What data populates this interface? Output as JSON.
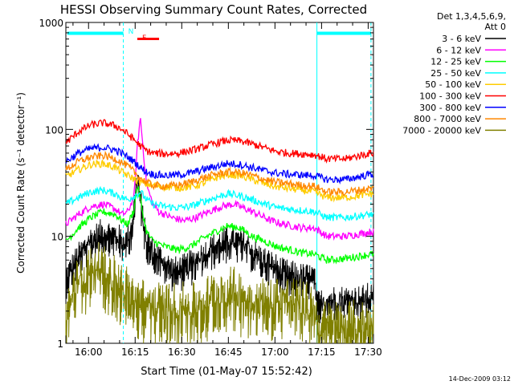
{
  "chart_data": {
    "type": "line",
    "title": "HESSI Observing Summary Count Rates, Corrected",
    "xlabel": "Start Time (01-May-07 15:52:42)",
    "ylabel": "Corrected Count Rate (s⁻¹ detector⁻¹)",
    "y_scale": "log",
    "ylim": [
      1,
      1000
    ],
    "x_unit": "minutes since 15:52:42",
    "xlim": [
      0,
      99
    ],
    "x_ticks": [
      {
        "label": "16:00",
        "value": 7.3
      },
      {
        "label": "16:15",
        "value": 22.3
      },
      {
        "label": "16:30",
        "value": 37.3
      },
      {
        "label": "16:45",
        "value": 52.3
      },
      {
        "label": "17:00",
        "value": 67.3
      },
      {
        "label": "17:15",
        "value": 82.3
      },
      {
        "label": "17:30",
        "value": 97.3
      }
    ],
    "y_ticks": [
      {
        "label": "1",
        "value": 1
      },
      {
        "label": "10",
        "value": 10
      },
      {
        "label": "100",
        "value": 100
      },
      {
        "label": "1000",
        "value": 1000
      }
    ],
    "legend": {
      "header": [
        "Det 1,3,4,5,6,9,",
        "Att 0"
      ],
      "placement": "right"
    },
    "flags": [
      {
        "label": "N",
        "color": "#00ffff",
        "x_start": 18.5,
        "x_end": 19.5
      },
      {
        "label": "F",
        "color": "#ff0000",
        "x_start": 23.0,
        "x_end": 30.0
      }
    ],
    "night_bars": [
      {
        "x_start": 0.5,
        "x_end": 18.5
      },
      {
        "x_start": 80.8,
        "x_end": 98.2
      }
    ],
    "night_lines": [
      18.5,
      80.8,
      98.2
    ],
    "series": [
      {
        "name": "3 - 6 keV",
        "color": "#000000",
        "points": [
          [
            0,
            4.5
          ],
          [
            4,
            7
          ],
          [
            8,
            10
          ],
          [
            12,
            12
          ],
          [
            16,
            11
          ],
          [
            18,
            10
          ],
          [
            19,
            9
          ],
          [
            21,
            13
          ],
          [
            22,
            20
          ],
          [
            23,
            40
          ],
          [
            24,
            25
          ],
          [
            25,
            14
          ],
          [
            26,
            10
          ],
          [
            28,
            8
          ],
          [
            30,
            7
          ],
          [
            32,
            6
          ],
          [
            35,
            5.2
          ],
          [
            38,
            5.5
          ],
          [
            42,
            6.5
          ],
          [
            46,
            8
          ],
          [
            50,
            9.5
          ],
          [
            54,
            10
          ],
          [
            58,
            9
          ],
          [
            62,
            7
          ],
          [
            66,
            6
          ],
          [
            70,
            5
          ],
          [
            76,
            4.5
          ],
          [
            80,
            4.5
          ],
          [
            80.8,
            2.5
          ],
          [
            85,
            2.8
          ],
          [
            90,
            2.8
          ],
          [
            95,
            2.8
          ],
          [
            98,
            3
          ]
        ]
      },
      {
        "name": "6 - 12 keV",
        "color": "#ff00ff",
        "points": [
          [
            0,
            13
          ],
          [
            4,
            16
          ],
          [
            8,
            19
          ],
          [
            12,
            20
          ],
          [
            16,
            18
          ],
          [
            18,
            16
          ],
          [
            20,
            17
          ],
          [
            22,
            24
          ],
          [
            23,
            70
          ],
          [
            24,
            130
          ],
          [
            25,
            60
          ],
          [
            26,
            30
          ],
          [
            28,
            20
          ],
          [
            30,
            17
          ],
          [
            34,
            15
          ],
          [
            38,
            14
          ],
          [
            42,
            15
          ],
          [
            46,
            17
          ],
          [
            50,
            19
          ],
          [
            54,
            20
          ],
          [
            58,
            18
          ],
          [
            62,
            16
          ],
          [
            66,
            14
          ],
          [
            70,
            13
          ],
          [
            76,
            12
          ],
          [
            80,
            12
          ],
          [
            84,
            10
          ],
          [
            90,
            10
          ],
          [
            98,
            11
          ]
        ]
      },
      {
        "name": "12 - 25 keV",
        "color": "#00ff00",
        "points": [
          [
            0,
            9
          ],
          [
            4,
            12
          ],
          [
            8,
            15
          ],
          [
            12,
            17
          ],
          [
            16,
            16
          ],
          [
            18,
            14
          ],
          [
            20,
            13
          ],
          [
            22,
            18
          ],
          [
            23,
            30
          ],
          [
            24,
            22
          ],
          [
            25,
            15
          ],
          [
            26,
            11
          ],
          [
            28,
            9
          ],
          [
            32,
            8
          ],
          [
            36,
            7.5
          ],
          [
            40,
            8
          ],
          [
            44,
            9.5
          ],
          [
            48,
            11
          ],
          [
            52,
            12.5
          ],
          [
            56,
            12
          ],
          [
            60,
            10
          ],
          [
            64,
            9
          ],
          [
            68,
            8
          ],
          [
            72,
            7.5
          ],
          [
            76,
            7
          ],
          [
            80,
            6.8
          ],
          [
            84,
            6
          ],
          [
            90,
            6.2
          ],
          [
            98,
            6.8
          ]
        ]
      },
      {
        "name": "25 - 50 keV",
        "color": "#00ffff",
        "points": [
          [
            0,
            20
          ],
          [
            4,
            23
          ],
          [
            8,
            26
          ],
          [
            12,
            27
          ],
          [
            16,
            25
          ],
          [
            18,
            23
          ],
          [
            20,
            22
          ],
          [
            22,
            24
          ],
          [
            24,
            26
          ],
          [
            26,
            22
          ],
          [
            28,
            20
          ],
          [
            32,
            19
          ],
          [
            36,
            18.5
          ],
          [
            40,
            19
          ],
          [
            44,
            21
          ],
          [
            48,
            23
          ],
          [
            52,
            25
          ],
          [
            56,
            24
          ],
          [
            60,
            22
          ],
          [
            64,
            20
          ],
          [
            68,
            18.5
          ],
          [
            72,
            18
          ],
          [
            76,
            17.5
          ],
          [
            80,
            17
          ],
          [
            84,
            15
          ],
          [
            90,
            15
          ],
          [
            98,
            16
          ]
        ]
      },
      {
        "name": "50 - 100 keV",
        "color": "#ffcc00",
        "points": [
          [
            0,
            36
          ],
          [
            4,
            42
          ],
          [
            8,
            47
          ],
          [
            12,
            48
          ],
          [
            16,
            44
          ],
          [
            18,
            40
          ],
          [
            20,
            37
          ],
          [
            24,
            32
          ],
          [
            28,
            30
          ],
          [
            32,
            29
          ],
          [
            36,
            28.5
          ],
          [
            40,
            29
          ],
          [
            44,
            31
          ],
          [
            48,
            35
          ],
          [
            52,
            38
          ],
          [
            56,
            37
          ],
          [
            60,
            34
          ],
          [
            64,
            31
          ],
          [
            68,
            29
          ],
          [
            72,
            28
          ],
          [
            76,
            27
          ],
          [
            80,
            26
          ],
          [
            84,
            23
          ],
          [
            90,
            23
          ],
          [
            98,
            25
          ]
        ]
      },
      {
        "name": "100 - 300 keV",
        "color": "#ff0000",
        "points": [
          [
            0,
            75
          ],
          [
            4,
            95
          ],
          [
            8,
            110
          ],
          [
            12,
            115
          ],
          [
            16,
            108
          ],
          [
            18,
            100
          ],
          [
            20,
            90
          ],
          [
            22,
            80
          ],
          [
            24,
            70
          ],
          [
            26,
            63
          ],
          [
            28,
            60
          ],
          [
            32,
            59
          ],
          [
            36,
            60
          ],
          [
            40,
            63
          ],
          [
            44,
            68
          ],
          [
            48,
            74
          ],
          [
            52,
            79
          ],
          [
            56,
            78
          ],
          [
            60,
            73
          ],
          [
            64,
            67
          ],
          [
            68,
            62
          ],
          [
            72,
            60
          ],
          [
            76,
            59
          ],
          [
            80,
            58
          ],
          [
            84,
            53
          ],
          [
            90,
            53
          ],
          [
            98,
            60
          ]
        ]
      },
      {
        "name": "300 - 800 keV",
        "color": "#0000ff",
        "points": [
          [
            0,
            50
          ],
          [
            4,
            60
          ],
          [
            8,
            66
          ],
          [
            12,
            68
          ],
          [
            16,
            64
          ],
          [
            18,
            60
          ],
          [
            20,
            55
          ],
          [
            22,
            50
          ],
          [
            24,
            44
          ],
          [
            26,
            40
          ],
          [
            28,
            38
          ],
          [
            32,
            37
          ],
          [
            36,
            37.5
          ],
          [
            40,
            39
          ],
          [
            44,
            42
          ],
          [
            48,
            45
          ],
          [
            52,
            48
          ],
          [
            56,
            47
          ],
          [
            60,
            44
          ],
          [
            64,
            41
          ],
          [
            68,
            39
          ],
          [
            72,
            38
          ],
          [
            76,
            37.5
          ],
          [
            80,
            37
          ],
          [
            84,
            34
          ],
          [
            90,
            34
          ],
          [
            98,
            38
          ]
        ]
      },
      {
        "name": "800 - 7000 keV",
        "color": "#ff8800",
        "points": [
          [
            0,
            42
          ],
          [
            4,
            50
          ],
          [
            8,
            55
          ],
          [
            12,
            57
          ],
          [
            16,
            53
          ],
          [
            18,
            49
          ],
          [
            20,
            45
          ],
          [
            22,
            40
          ],
          [
            24,
            35
          ],
          [
            26,
            32
          ],
          [
            28,
            30
          ],
          [
            32,
            29.5
          ],
          [
            36,
            30
          ],
          [
            40,
            32
          ],
          [
            44,
            35
          ],
          [
            48,
            38
          ],
          [
            52,
            40
          ],
          [
            56,
            39.5
          ],
          [
            60,
            37
          ],
          [
            64,
            34
          ],
          [
            68,
            32
          ],
          [
            72,
            31
          ],
          [
            76,
            30
          ],
          [
            80,
            29.5
          ],
          [
            84,
            26
          ],
          [
            90,
            26
          ],
          [
            98,
            28
          ]
        ]
      },
      {
        "name": "7000 - 20000 keV",
        "color": "#808000",
        "points": [
          [
            0,
            2.2
          ],
          [
            2,
            3
          ],
          [
            4,
            4.5
          ],
          [
            6,
            5
          ],
          [
            8,
            5.5
          ],
          [
            10,
            6
          ],
          [
            12,
            5.5
          ],
          [
            14,
            5
          ],
          [
            16,
            4.5
          ],
          [
            18,
            4
          ],
          [
            20,
            3.5
          ],
          [
            22,
            3
          ],
          [
            26,
            2.6
          ],
          [
            30,
            2.5
          ],
          [
            36,
            2.5
          ],
          [
            42,
            2.5
          ],
          [
            46,
            3
          ],
          [
            50,
            3.5
          ],
          [
            54,
            3.5
          ],
          [
            58,
            3
          ],
          [
            62,
            2.8
          ],
          [
            66,
            2.8
          ],
          [
            70,
            3
          ],
          [
            74,
            2.8
          ],
          [
            78,
            2.5
          ],
          [
            80,
            2.5
          ],
          [
            80.8,
            1.7
          ],
          [
            85,
            1.7
          ],
          [
            90,
            1.7
          ],
          [
            98,
            1.7
          ]
        ]
      }
    ]
  },
  "footer": {
    "timestamp": "14-Dec-2009 03:12"
  }
}
